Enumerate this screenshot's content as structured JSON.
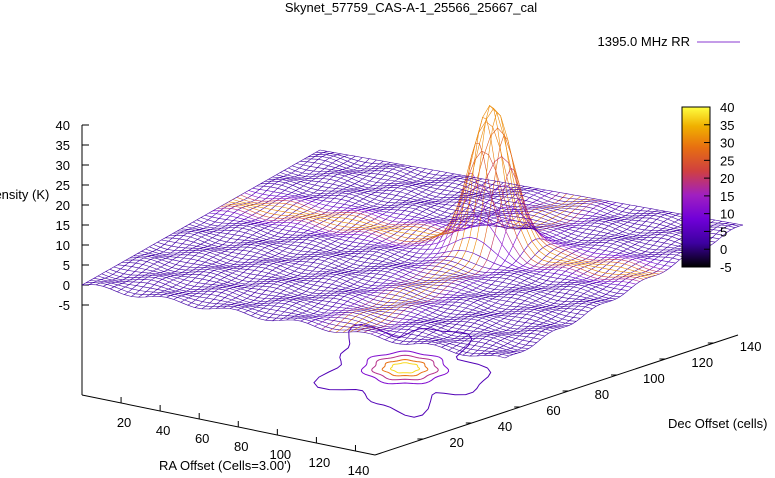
{
  "chart_data": {
    "type": "surface",
    "title": "Skynet_57759_CAS-A-1_25566_25667_cal",
    "legend": {
      "label": "1395.0 MHz RR",
      "placement": "top-right",
      "line_color_start": "#7a1fd6",
      "line_color_end": "#e0a000"
    },
    "zlabel": "Intensity (K)",
    "xlabel": "RA Offset (Cells=3.00')",
    "ylabel": "Dec Offset (cells)",
    "zlim": [
      -5,
      40
    ],
    "zticks": [
      "40",
      "35",
      "30",
      "25",
      "20",
      "15",
      "10",
      "5",
      "0",
      "-5"
    ],
    "xticks": [
      "20",
      "40",
      "60",
      "80",
      "100",
      "120",
      "140"
    ],
    "yticks": [
      "20",
      "40",
      "60",
      "80",
      "100",
      "120",
      "140"
    ],
    "colorbar": {
      "ticks": [
        "40",
        "35",
        "30",
        "25",
        "20",
        "15",
        "10",
        "5",
        "0",
        "-5"
      ],
      "range": [
        -5,
        40
      ],
      "colormap": [
        "#000000",
        "#3d00a0",
        "#7000d8",
        "#a020c0",
        "#d04040",
        "#e87010",
        "#f0b000",
        "#ffff40"
      ]
    },
    "surface": {
      "baseline_k": 0,
      "peak_k": 42,
      "peak_ra_cells": 80,
      "peak_dec_cells": 100,
      "grid_color": "#7a2ec8"
    },
    "contours": {
      "levels_k": [
        2,
        8,
        15,
        25,
        35
      ]
    }
  }
}
